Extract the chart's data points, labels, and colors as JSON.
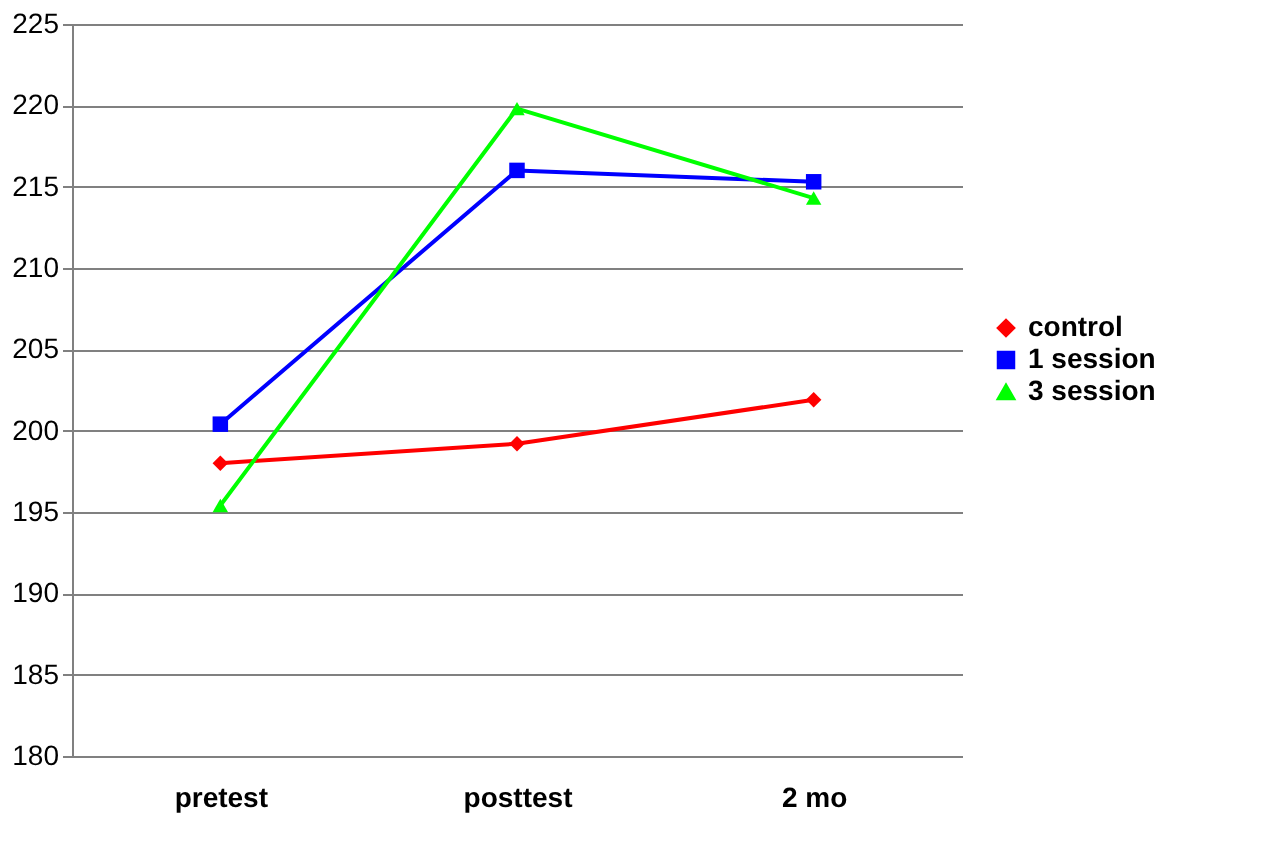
{
  "chart_data": {
    "type": "line",
    "categories": [
      "pretest",
      "posttest",
      "2 mo"
    ],
    "series": [
      {
        "name": "control",
        "color": "#ff0000",
        "marker": "diamond",
        "values": [
          198.0,
          199.2,
          201.9
        ]
      },
      {
        "name": "1 session",
        "color": "#0000ff",
        "marker": "square",
        "values": [
          200.4,
          216.0,
          215.3
        ]
      },
      {
        "name": "3 session",
        "color": "#00ff00",
        "marker": "triangle",
        "values": [
          195.4,
          219.8,
          214.3
        ]
      }
    ],
    "ylim": [
      180,
      225
    ],
    "yticks": [
      180,
      185,
      190,
      195,
      200,
      205,
      210,
      215,
      220,
      225
    ],
    "grid": "y",
    "legend": "right",
    "line_style": "solid"
  }
}
